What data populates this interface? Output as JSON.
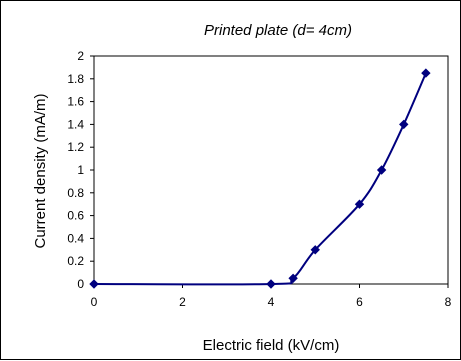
{
  "chart_data": {
    "type": "line",
    "title": "Printed plate (d= 4cm)",
    "xlabel": "Electric field (kV/cm)",
    "ylabel": "Current density (mA/m)",
    "xlim": [
      0,
      8
    ],
    "ylim": [
      0,
      2
    ],
    "xticks": [
      "0",
      "2",
      "4",
      "6",
      "8"
    ],
    "yticks": [
      "0",
      "0.2",
      "0.4",
      "0.6",
      "0.8",
      "1",
      "1.2",
      "1.4",
      "1.6",
      "1.8",
      "2"
    ],
    "grid": false,
    "legend": "none",
    "series": [
      {
        "color": "#00007f",
        "marker": "diamond",
        "x": [
          0,
          4,
          4.5,
          5,
          6,
          6.5,
          7,
          7.5
        ],
        "y": [
          0,
          0,
          0.05,
          0.3,
          0.7,
          1.0,
          1.4,
          1.85
        ]
      }
    ]
  }
}
